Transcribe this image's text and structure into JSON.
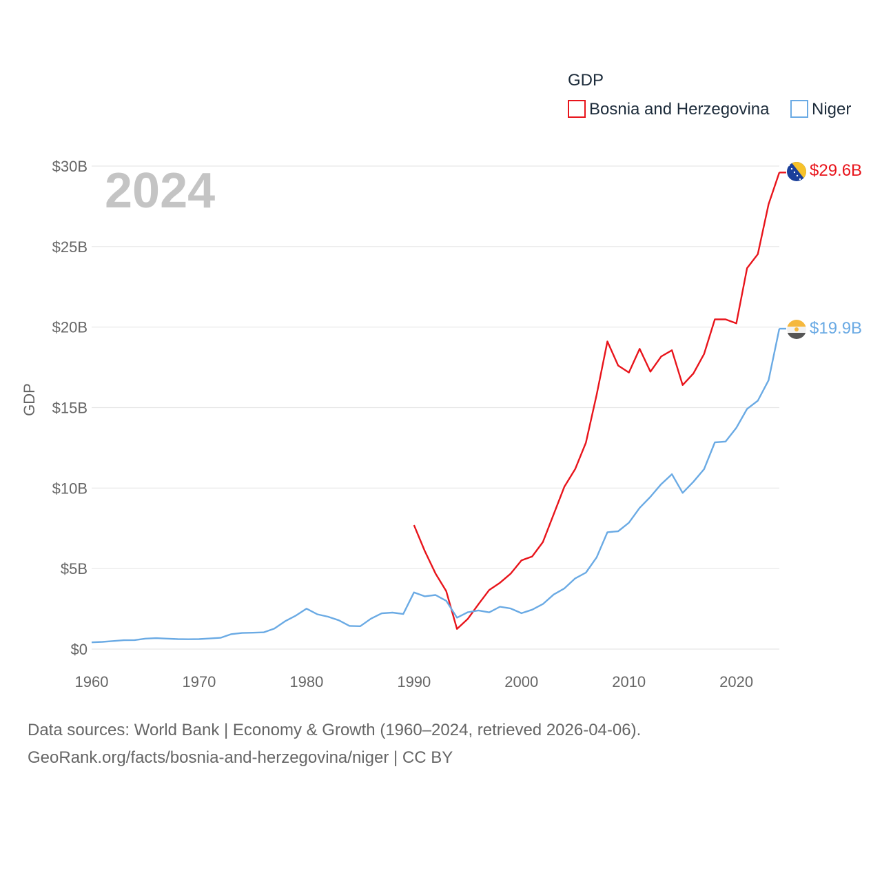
{
  "chart_data": {
    "type": "line",
    "watermark_year": "2024",
    "ylabel": "GDP",
    "xlabel": "",
    "xlim": [
      1960,
      2024
    ],
    "ylim": [
      0,
      30
    ],
    "x_ticks": [
      1960,
      1970,
      1980,
      1990,
      2000,
      2010,
      2020
    ],
    "y_ticks": [
      {
        "value": 0,
        "label": "$0"
      },
      {
        "value": 5,
        "label": "$5B"
      },
      {
        "value": 10,
        "label": "$10B"
      },
      {
        "value": 15,
        "label": "$15B"
      },
      {
        "value": 20,
        "label": "$20B"
      },
      {
        "value": 25,
        "label": "$25B"
      },
      {
        "value": 30,
        "label": "$30B"
      }
    ],
    "legend": {
      "title": "GDP",
      "position": "top-right",
      "entries": [
        "Bosnia and Herzegovina",
        "Niger"
      ]
    },
    "series": [
      {
        "name": "Bosnia and Herzegovina",
        "color": "#e8141b",
        "end_label": "$29.6B",
        "flag_icon": "bosnia-flag-icon",
        "points": [
          [
            1990,
            7.7
          ],
          [
            1991,
            6.1
          ],
          [
            1992,
            4.7
          ],
          [
            1993,
            3.6
          ],
          [
            1994,
            1.25
          ],
          [
            1995,
            1.87
          ],
          [
            1996,
            2.79
          ],
          [
            1997,
            3.67
          ],
          [
            1998,
            4.12
          ],
          [
            1999,
            4.69
          ],
          [
            2000,
            5.51
          ],
          [
            2001,
            5.75
          ],
          [
            2002,
            6.65
          ],
          [
            2003,
            8.37
          ],
          [
            2004,
            10.09
          ],
          [
            2005,
            11.18
          ],
          [
            2006,
            12.82
          ],
          [
            2007,
            15.8
          ],
          [
            2008,
            19.11
          ],
          [
            2009,
            17.61
          ],
          [
            2010,
            17.18
          ],
          [
            2011,
            18.65
          ],
          [
            2012,
            17.23
          ],
          [
            2013,
            18.17
          ],
          [
            2014,
            18.56
          ],
          [
            2015,
            16.4
          ],
          [
            2016,
            17.12
          ],
          [
            2017,
            18.33
          ],
          [
            2018,
            20.48
          ],
          [
            2019,
            20.48
          ],
          [
            2020,
            20.23
          ],
          [
            2021,
            23.66
          ],
          [
            2022,
            24.53
          ],
          [
            2023,
            27.63
          ],
          [
            2024,
            29.6
          ]
        ]
      },
      {
        "name": "Niger",
        "color": "#6aaae4",
        "end_label": "$19.9B",
        "flag_icon": "niger-flag-icon",
        "points": [
          [
            1960,
            0.42
          ],
          [
            1961,
            0.45
          ],
          [
            1962,
            0.5
          ],
          [
            1963,
            0.55
          ],
          [
            1964,
            0.56
          ],
          [
            1965,
            0.65
          ],
          [
            1966,
            0.68
          ],
          [
            1967,
            0.65
          ],
          [
            1968,
            0.62
          ],
          [
            1969,
            0.61
          ],
          [
            1970,
            0.62
          ],
          [
            1971,
            0.66
          ],
          [
            1972,
            0.7
          ],
          [
            1973,
            0.93
          ],
          [
            1974,
            1.0
          ],
          [
            1975,
            1.02
          ],
          [
            1976,
            1.04
          ],
          [
            1977,
            1.27
          ],
          [
            1978,
            1.73
          ],
          [
            1979,
            2.08
          ],
          [
            1980,
            2.51
          ],
          [
            1981,
            2.16
          ],
          [
            1982,
            2.01
          ],
          [
            1983,
            1.79
          ],
          [
            1984,
            1.44
          ],
          [
            1985,
            1.42
          ],
          [
            1986,
            1.89
          ],
          [
            1987,
            2.22
          ],
          [
            1988,
            2.27
          ],
          [
            1989,
            2.18
          ],
          [
            1990,
            3.52
          ],
          [
            1991,
            3.28
          ],
          [
            1992,
            3.36
          ],
          [
            1993,
            3.0
          ],
          [
            1994,
            1.95
          ],
          [
            1995,
            2.29
          ],
          [
            1996,
            2.4
          ],
          [
            1997,
            2.28
          ],
          [
            1998,
            2.63
          ],
          [
            1999,
            2.52
          ],
          [
            2000,
            2.23
          ],
          [
            2001,
            2.45
          ],
          [
            2002,
            2.8
          ],
          [
            2003,
            3.39
          ],
          [
            2004,
            3.77
          ],
          [
            2005,
            4.39
          ],
          [
            2006,
            4.75
          ],
          [
            2007,
            5.7
          ],
          [
            2008,
            7.26
          ],
          [
            2009,
            7.32
          ],
          [
            2010,
            7.85
          ],
          [
            2011,
            8.77
          ],
          [
            2012,
            9.46
          ],
          [
            2013,
            10.24
          ],
          [
            2014,
            10.86
          ],
          [
            2015,
            9.7
          ],
          [
            2016,
            10.39
          ],
          [
            2017,
            11.18
          ],
          [
            2018,
            12.84
          ],
          [
            2019,
            12.89
          ],
          [
            2020,
            13.74
          ],
          [
            2021,
            14.92
          ],
          [
            2022,
            15.43
          ],
          [
            2023,
            16.7
          ],
          [
            2024,
            19.9
          ]
        ]
      }
    ]
  },
  "source": {
    "line1": "Data sources: World Bank | Economy & Growth (1960–2024, retrieved 2026-04-06).",
    "line2": "GeoRank.org/facts/bosnia-and-herzegovina/niger | CC BY"
  }
}
